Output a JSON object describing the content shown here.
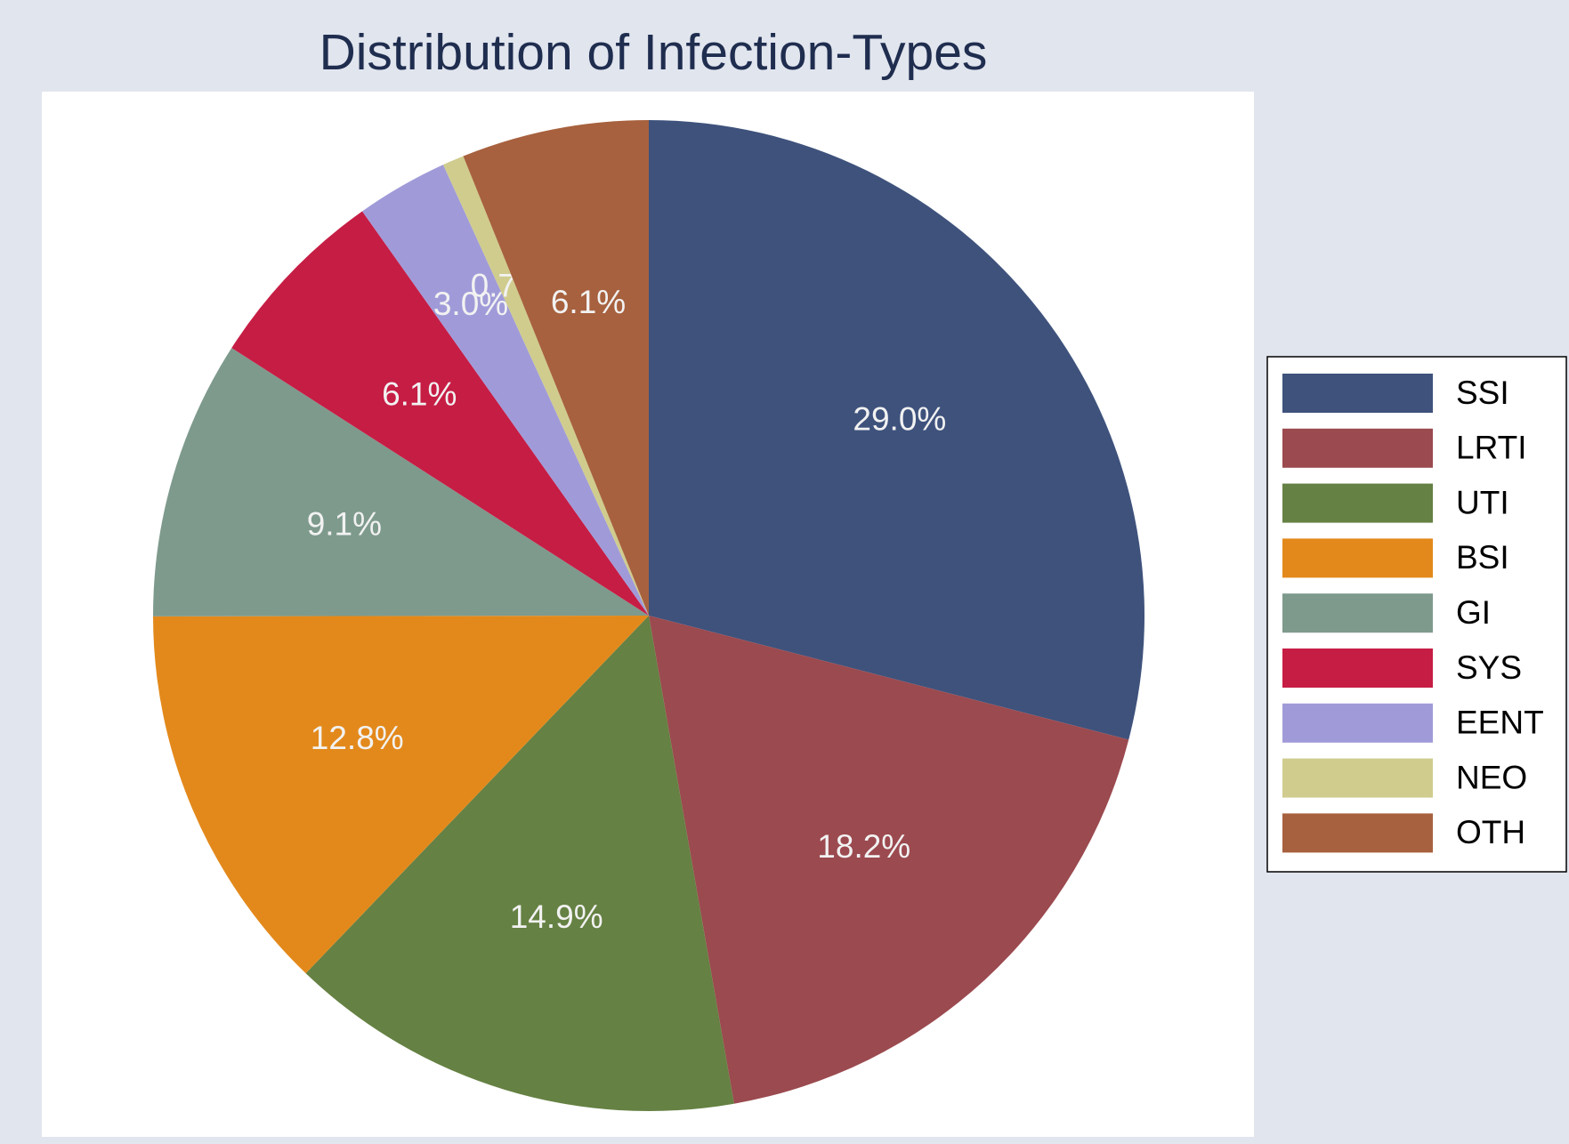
{
  "chart_data": {
    "type": "pie",
    "title": "Distribution of Infection-Types",
    "categories": [
      "SSI",
      "LRTI",
      "UTI",
      "BSI",
      "GI",
      "SYS",
      "EENT",
      "NEO",
      "OTH"
    ],
    "values": [
      29.0,
      18.2,
      14.9,
      12.8,
      9.1,
      6.1,
      3.0,
      0.7,
      6.1
    ],
    "value_labels": [
      "29.0%",
      "18.2%",
      "14.9%",
      "12.8%",
      "9.1%",
      "6.1%",
      "3.0%",
      "0.7%",
      "6.1%"
    ],
    "colors": [
      "#3e527c",
      "#9b4a4f",
      "#658143",
      "#e3891b",
      "#7e9a8d",
      "#c61d45",
      "#a09bd8",
      "#d0cc8e",
      "#a7613e"
    ],
    "legend": "right"
  }
}
